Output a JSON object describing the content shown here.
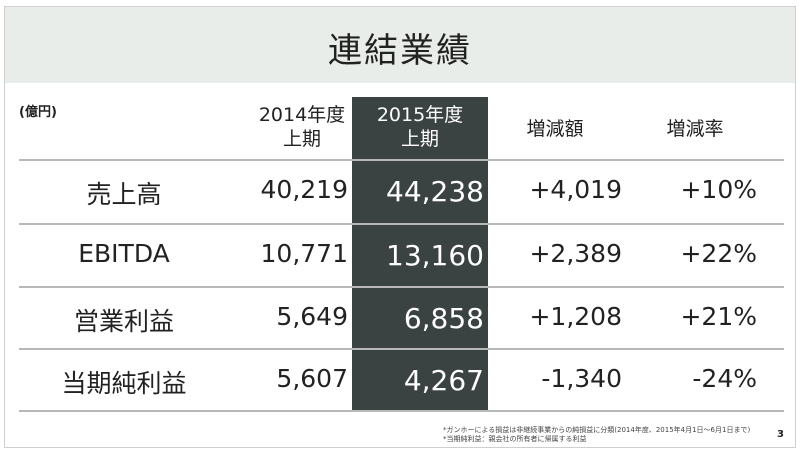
{
  "header": {
    "title": "連結業績"
  },
  "table": {
    "unit": "(億円)",
    "headers": [
      [
        "2014年度",
        "上期"
      ],
      [
        "2015年度",
        "上期"
      ],
      [
        "増減額"
      ],
      [
        "増減率"
      ]
    ],
    "rows": [
      [
        "売上高",
        "40,219",
        "44,238",
        "+4,019",
        "+10%"
      ],
      [
        "EBITDA",
        "10,771",
        "13,160",
        "+2,389",
        "+22%"
      ],
      [
        "営業利益",
        "5,649",
        "6,858",
        "+1,208",
        "+21%"
      ],
      [
        "当期純利益",
        "5,607",
        "4,267",
        "-1,340",
        "-24%"
      ]
    ]
  },
  "footnotes": [
    "*ガンホーによる損益は非継続事業からの純損益に分類(2014年度、2015年4月1日〜6月1日まで)",
    "*当期純利益：親会社の所有者に帰属する利益"
  ],
  "page_number": "3"
}
